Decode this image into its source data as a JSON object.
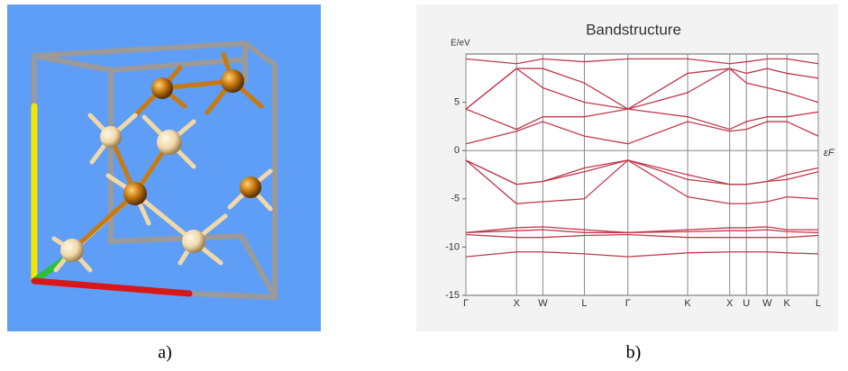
{
  "captions": [
    "a)",
    "b)"
  ],
  "chart_data": {
    "type": "line",
    "title": "Bandstructure",
    "y_label": "E/eV",
    "fermi_label": "εF",
    "x": [
      0,
      1,
      1.52,
      2.34,
      3.2,
      4.38,
      5.21,
      5.54,
      5.95,
      6.34,
      6.96
    ],
    "xlim": [
      0,
      6.96
    ],
    "xticks": [
      {
        "value": 0,
        "label": "Γ"
      },
      {
        "value": 1,
        "label": "X"
      },
      {
        "value": 1.52,
        "label": "W"
      },
      {
        "value": 2.34,
        "label": "L"
      },
      {
        "value": 3.2,
        "label": "Γ"
      },
      {
        "value": 4.38,
        "label": "K"
      },
      {
        "value": 5.21,
        "label": "X"
      },
      {
        "value": 5.54,
        "label": "U"
      },
      {
        "value": 5.95,
        "label": "W"
      },
      {
        "value": 6.34,
        "label": "K"
      },
      {
        "value": 6.96,
        "label": "L"
      }
    ],
    "ylim": [
      -15,
      10
    ],
    "yticks": [
      -15,
      -10,
      -5,
      0,
      5
    ],
    "zero_line": true,
    "series": [
      {
        "color": "#c0394b",
        "values": [
          -11,
          -10.5,
          -10.5,
          -10.7,
          -11,
          -10.6,
          -10.5,
          -10.5,
          -10.5,
          -10.6,
          -10.7
        ]
      },
      {
        "color": "#c0394b",
        "values": [
          -8.7,
          -9,
          -9,
          -8.8,
          -8.7,
          -9,
          -9,
          -9,
          -9,
          -9,
          -8.8
        ]
      },
      {
        "color": "#c0394b",
        "values": [
          -8.5,
          -8.3,
          -8.2,
          -8.5,
          -8.5,
          -8.4,
          -8.3,
          -8.3,
          -8.2,
          -8.4,
          -8.5
        ]
      },
      {
        "color": "#c0394b",
        "values": [
          -8.5,
          -8,
          -7.9,
          -8.2,
          -8.5,
          -8.2,
          -8,
          -8,
          -7.9,
          -8.2,
          -8.2
        ]
      },
      {
        "color": "#c0394b",
        "values": [
          -1,
          -5.5,
          -5.3,
          -5,
          -1,
          -4.8,
          -5.5,
          -5.5,
          -5.3,
          -4.8,
          -5
        ]
      },
      {
        "color": "#c0394b",
        "values": [
          -1,
          -3.5,
          -3.2,
          -2.2,
          -1,
          -3,
          -3.5,
          -3.5,
          -3.2,
          -3,
          -2.2
        ]
      },
      {
        "color": "#c0394b",
        "values": [
          -1,
          -3.5,
          -3.2,
          -1.8,
          -1,
          -2.5,
          -3.5,
          -3.5,
          -3.2,
          -2.5,
          -1.8
        ]
      },
      {
        "color": "#c0394b",
        "values": [
          0.7,
          2,
          3,
          1.5,
          0.7,
          3,
          2,
          2.2,
          3,
          3,
          1.5
        ]
      },
      {
        "color": "#c0394b",
        "values": [
          4.3,
          2.2,
          3.5,
          3.5,
          4.3,
          3.5,
          2.2,
          3,
          3.5,
          3.5,
          4
        ]
      },
      {
        "color": "#c0394b",
        "values": [
          4.3,
          8.5,
          6.5,
          5,
          4.3,
          6,
          8.5,
          7,
          6.5,
          6,
          5
        ]
      },
      {
        "color": "#c0394b",
        "values": [
          4.3,
          8.5,
          8.5,
          7,
          4.3,
          8,
          8.5,
          8,
          8.5,
          8,
          7.5
        ]
      },
      {
        "color": "#c0394b",
        "values": [
          9.5,
          9,
          9.5,
          9.2,
          9.5,
          9.5,
          9,
          9.2,
          9.5,
          9.5,
          9
        ]
      }
    ]
  }
}
